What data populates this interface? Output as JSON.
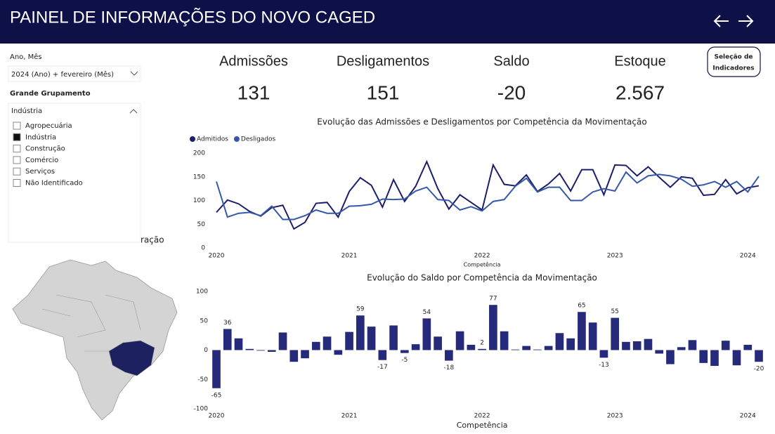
{
  "header": {
    "title": "PAINEL DE INFORMAÇÕES DO NOVO CAGED"
  },
  "filters": {
    "period_label": "Ano, Mês",
    "period_value": "2024 (Ano) + fevereiro (Mês)",
    "group_label": "Grande Grupamento",
    "group_value": "Indústria",
    "items": [
      {
        "label": "Agropecuária",
        "checked": false
      },
      {
        "label": "Indústria",
        "checked": true
      },
      {
        "label": "Construção",
        "checked": false
      },
      {
        "label": "Comércio",
        "checked": false
      },
      {
        "label": "Serviços",
        "checked": false
      },
      {
        "label": "Não Identificado",
        "checked": false
      }
    ]
  },
  "map_title": "ração",
  "button": {
    "line1": "Seleção de",
    "line2": "Indicadores"
  },
  "kpis": [
    {
      "label": "Admissões",
      "value": 131
    },
    {
      "label": "Desligamentos",
      "value": 151
    },
    {
      "label": "Saldo",
      "value": -20
    },
    {
      "label": "Estoque",
      "value": {
        "value": 2567,
        "label": "2.567"
      }
    }
  ],
  "chart_data": [
    {
      "type": "line",
      "title": "Evolução das Admissões e Desligamentos por Competência da Movimentação",
      "x_label": "Competência",
      "categories": [
        "2020",
        null,
        null,
        null,
        null,
        null,
        null,
        null,
        null,
        null,
        null,
        null,
        "2021",
        null,
        null,
        null,
        null,
        null,
        null,
        null,
        null,
        null,
        null,
        null,
        "2022",
        null,
        null,
        null,
        null,
        null,
        null,
        null,
        null,
        null,
        null,
        null,
        "2023",
        null,
        null,
        null,
        null,
        null,
        null,
        null,
        null,
        null,
        null,
        null,
        "2024",
        null
      ],
      "ylim": [
        0,
        200
      ],
      "yticks": [
        0,
        50,
        100,
        150,
        200
      ],
      "series": [
        {
          "name": "Admitidos",
          "color": "#1b1f6b",
          "values": [
            75,
            101,
            93,
            77,
            67,
            85,
            90,
            40,
            54,
            94,
            96,
            65,
            119,
            148,
            132,
            86,
            144,
            98,
            130,
            182,
            125,
            82,
            112,
            96,
            80,
            175,
            134,
            131,
            154,
            119,
            135,
            157,
            120,
            165,
            165,
            112,
            175,
            174,
            152,
            171,
            149,
            128,
            150,
            147,
            111,
            113,
            144,
            114,
            127,
            131
          ]
        },
        {
          "name": "Desligados",
          "color": "#3559a8",
          "values": [
            140,
            65,
            73,
            75,
            68,
            88,
            60,
            60,
            68,
            80,
            73,
            73,
            88,
            89,
            92,
            103,
            102,
            103,
            120,
            128,
            102,
            100,
            80,
            87,
            78,
            98,
            102,
            130,
            147,
            118,
            128,
            128,
            100,
            100,
            118,
            125,
            120,
            160,
            137,
            152,
            155,
            152,
            145,
            130,
            133,
            140,
            128,
            140,
            118,
            151
          ]
        }
      ]
    },
    {
      "type": "bar",
      "title": "Evolução do Saldo por Competência da Movimentação",
      "x_label": "Competência",
      "color": "#262a7a",
      "categories": [
        "2020",
        null,
        null,
        null,
        null,
        null,
        null,
        null,
        null,
        null,
        null,
        null,
        "2021",
        null,
        null,
        null,
        null,
        null,
        null,
        null,
        null,
        null,
        null,
        null,
        "2022",
        null,
        null,
        null,
        null,
        null,
        null,
        null,
        null,
        null,
        null,
        null,
        "2023",
        null,
        null,
        null,
        null,
        null,
        null,
        null,
        null,
        null,
        null,
        null,
        "2024",
        null
      ],
      "ylim": [
        -100,
        100
      ],
      "yticks": [
        -100,
        -50,
        0,
        50,
        100
      ],
      "values": [
        -65,
        36,
        20,
        2,
        -1,
        -3,
        30,
        -20,
        -14,
        14,
        23,
        -8,
        31,
        59,
        40,
        -17,
        42,
        -5,
        10,
        54,
        23,
        -18,
        32,
        9,
        2,
        77,
        32,
        1,
        7,
        1,
        7,
        29,
        20,
        65,
        47,
        -13,
        55,
        14,
        15,
        19,
        -6,
        -24,
        5,
        17,
        -22,
        -27,
        16,
        -26,
        9,
        -20
      ],
      "value_labels": [
        "-65",
        "36",
        null,
        null,
        null,
        null,
        null,
        null,
        null,
        null,
        null,
        null,
        null,
        "59",
        null,
        "-17",
        null,
        "-5",
        null,
        "54",
        null,
        "-18",
        null,
        null,
        "2",
        "77",
        null,
        null,
        null,
        null,
        null,
        null,
        null,
        "65",
        null,
        "-13",
        "55",
        null,
        null,
        null,
        null,
        null,
        null,
        null,
        null,
        null,
        null,
        null,
        null,
        "-20"
      ]
    }
  ]
}
